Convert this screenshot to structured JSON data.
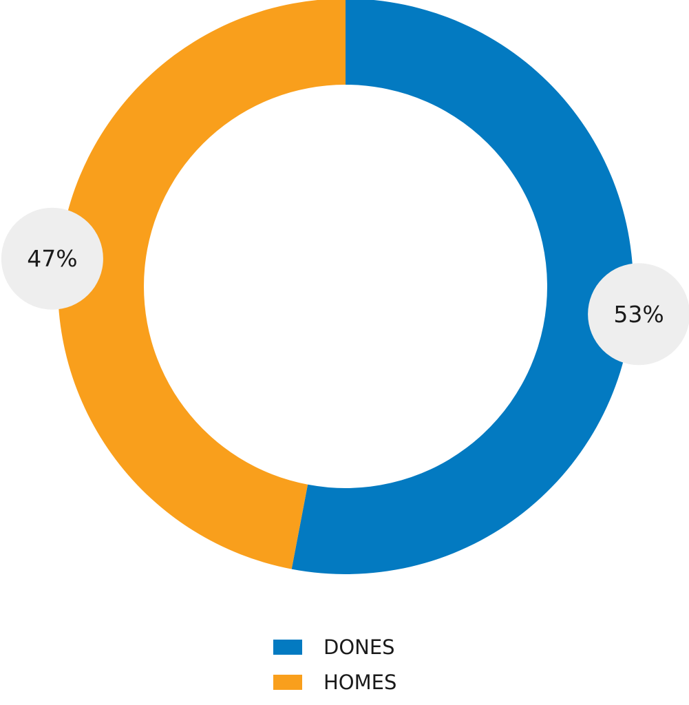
{
  "chart_data": {
    "type": "pie",
    "variant": "donut",
    "title": "",
    "slices": [
      {
        "name": "DONES",
        "value": 53,
        "label": "53%",
        "color": "#037ac1"
      },
      {
        "name": "HOMES",
        "value": 47,
        "label": "47%",
        "color": "#f99f1c"
      }
    ],
    "start_angle": "top (12 o'clock)",
    "direction": "clockwise",
    "label_badge_color": "#eeeeee",
    "legend_position": "bottom-center"
  },
  "legend": {
    "items": [
      {
        "label": "DONES",
        "color": "#037ac1"
      },
      {
        "label": "HOMES",
        "color": "#f99f1c"
      }
    ]
  }
}
